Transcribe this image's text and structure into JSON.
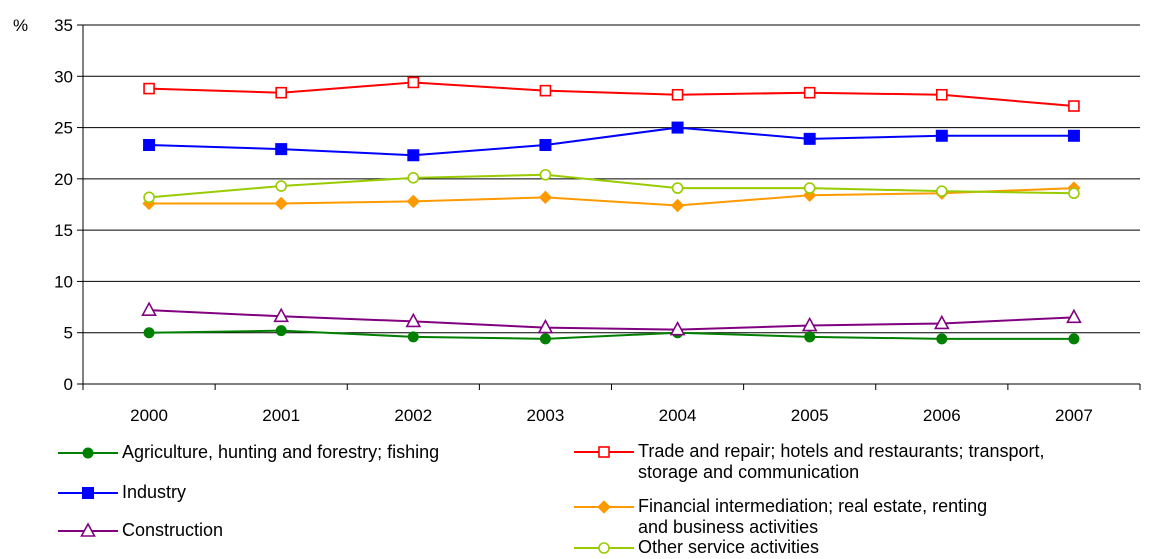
{
  "chart_data": {
    "type": "line",
    "title": "",
    "xlabel": "",
    "ylabel": "%",
    "ylim": [
      0,
      35
    ],
    "yticks": [
      0,
      5,
      10,
      15,
      20,
      25,
      30,
      35
    ],
    "grid": "horizontal",
    "legend_position": "bottom",
    "categories": [
      "2000",
      "2001",
      "2002",
      "2003",
      "2004",
      "2005",
      "2006",
      "2007"
    ],
    "series": [
      {
        "name": "Agriculture, hunting and forestry; fishing",
        "color": "#008000",
        "marker": "circle-filled",
        "values": [
          5.0,
          5.2,
          4.6,
          4.4,
          5.0,
          4.6,
          4.4,
          4.4
        ]
      },
      {
        "name": "Industry",
        "color": "#0000ff",
        "marker": "square-filled",
        "values": [
          23.3,
          22.9,
          22.3,
          23.3,
          25.0,
          23.9,
          24.2,
          24.2
        ]
      },
      {
        "name": "Construction",
        "color": "#800080",
        "marker": "triangle-open",
        "values": [
          7.2,
          6.6,
          6.1,
          5.5,
          5.3,
          5.7,
          5.9,
          6.5
        ]
      },
      {
        "name": "Trade and repair; hotels and restaurants; transport,\nstorage and communication",
        "color": "#ff0000",
        "marker": "square-open",
        "values": [
          28.8,
          28.4,
          29.4,
          28.6,
          28.2,
          28.4,
          28.2,
          27.1
        ]
      },
      {
        "name": "Financial intermediation; real estate, renting\nand business activities",
        "color": "#ff9900",
        "marker": "diamond-filled",
        "values": [
          17.6,
          17.6,
          17.8,
          18.2,
          17.4,
          18.4,
          18.6,
          19.1
        ]
      },
      {
        "name": "Other service activities",
        "color": "#99cc00",
        "marker": "circle-open",
        "values": [
          18.2,
          19.3,
          20.1,
          20.4,
          19.1,
          19.1,
          18.8,
          18.6
        ]
      }
    ]
  }
}
